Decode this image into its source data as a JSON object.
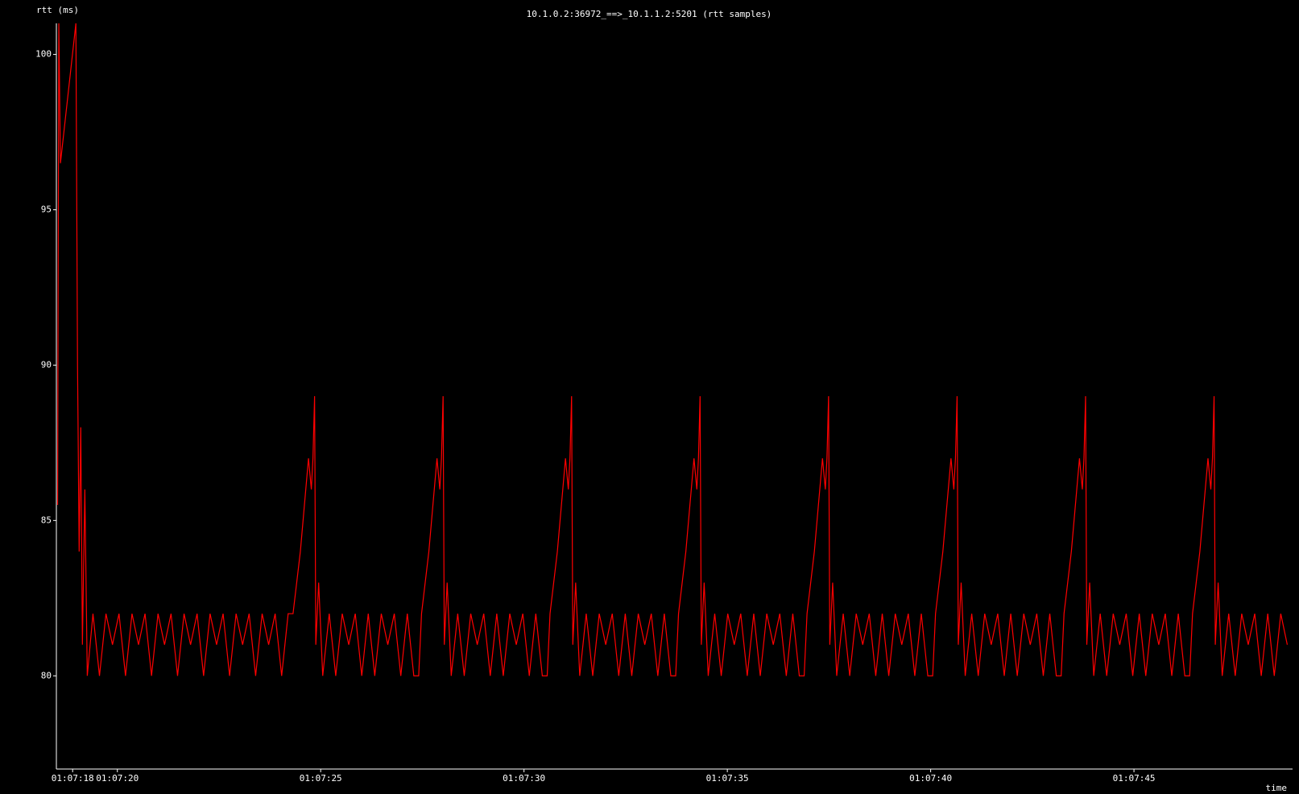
{
  "chart_data": {
    "type": "line",
    "title": "10.1.0.2:36972_==>_10.1.1.2:5201 (rtt samples)",
    "y_label": "rtt (ms)",
    "x_label": "time",
    "xlim": [
      18.5,
      48.9
    ],
    "ylim": [
      77,
      101
    ],
    "xticks": [
      {
        "value": 18.9,
        "label": "01:07:18"
      },
      {
        "value": 20,
        "label": "01:07:20"
      },
      {
        "value": 25,
        "label": "01:07:25"
      },
      {
        "value": 30,
        "label": "01:07:30"
      },
      {
        "value": 35,
        "label": "01:07:35"
      },
      {
        "value": 40,
        "label": "01:07:40"
      },
      {
        "value": 45,
        "label": "01:07:45"
      }
    ],
    "yticks": [
      80,
      85,
      90,
      95,
      100
    ],
    "series": [
      {
        "color": "#ff0000",
        "x": [
          18.53,
          18.56,
          18.6,
          18.98,
          19.02,
          19.06,
          19.1,
          19.14,
          19.2,
          19.26,
          19.4,
          19.56,
          19.72,
          19.88,
          20.04,
          20.2,
          20.36,
          20.52,
          20.68,
          20.84,
          21.0,
          21.16,
          21.32,
          21.48,
          21.64,
          21.8,
          21.96,
          22.12,
          22.28,
          22.44,
          22.6,
          22.76,
          22.92,
          23.08,
          23.24,
          23.4,
          23.56,
          23.72,
          23.88,
          24.04,
          24.2,
          24.32,
          24.5,
          24.7,
          24.77,
          24.81,
          24.85,
          24.88,
          24.95,
          25.05,
          25.21,
          25.37,
          25.53,
          25.69,
          25.85,
          26.01,
          26.17,
          26.33,
          26.49,
          26.65,
          26.81,
          26.97,
          27.13,
          27.29,
          27.41,
          27.48,
          27.66,
          27.86,
          27.93,
          27.97,
          28.01,
          28.04,
          28.11,
          28.21,
          28.37,
          28.53,
          28.69,
          28.85,
          29.01,
          29.17,
          29.33,
          29.49,
          29.65,
          29.81,
          29.97,
          30.13,
          30.29,
          30.45,
          30.57,
          30.64,
          30.82,
          31.02,
          31.09,
          31.13,
          31.17,
          31.2,
          31.27,
          31.37,
          31.53,
          31.69,
          31.85,
          32.01,
          32.17,
          32.33,
          32.49,
          32.65,
          32.81,
          32.97,
          33.13,
          33.29,
          33.45,
          33.61,
          33.73,
          33.8,
          33.98,
          34.18,
          34.25,
          34.29,
          34.33,
          34.36,
          34.43,
          34.53,
          34.69,
          34.85,
          35.01,
          35.17,
          35.33,
          35.49,
          35.65,
          35.81,
          35.97,
          36.13,
          36.29,
          36.45,
          36.61,
          36.77,
          36.89,
          36.96,
          37.14,
          37.34,
          37.41,
          37.45,
          37.49,
          37.52,
          37.59,
          37.69,
          37.85,
          38.01,
          38.17,
          38.33,
          38.49,
          38.65,
          38.81,
          38.97,
          39.13,
          39.29,
          39.45,
          39.61,
          39.77,
          39.93,
          40.05,
          40.12,
          40.3,
          40.5,
          40.57,
          40.61,
          40.65,
          40.68,
          40.75,
          40.85,
          41.01,
          41.17,
          41.33,
          41.49,
          41.65,
          41.81,
          41.97,
          42.13,
          42.29,
          42.45,
          42.61,
          42.77,
          42.93,
          43.09,
          43.21,
          43.28,
          43.46,
          43.66,
          43.73,
          43.77,
          43.81,
          43.84,
          43.91,
          44.01,
          44.17,
          44.33,
          44.49,
          44.65,
          44.81,
          44.97,
          45.13,
          45.29,
          45.45,
          45.61,
          45.77,
          45.93,
          46.09,
          46.25,
          46.37,
          46.44,
          46.62,
          46.82,
          46.89,
          46.93,
          46.97,
          47.0,
          47.07,
          47.17,
          47.33,
          47.49,
          47.65,
          47.81,
          47.97,
          48.13,
          48.29,
          48.45,
          48.61,
          48.77
        ],
        "values": [
          85.5,
          101,
          96.5,
          101,
          90,
          84,
          88,
          81,
          86,
          80,
          82,
          80,
          82,
          81,
          82,
          80,
          82,
          81,
          82,
          80,
          82,
          81,
          82,
          80,
          82,
          81,
          82,
          80,
          82,
          81,
          82,
          80,
          82,
          81,
          82,
          80,
          82,
          81,
          82,
          80,
          82,
          82,
          84,
          87,
          86,
          87,
          89,
          81,
          83,
          80,
          82,
          80,
          82,
          81,
          82,
          80,
          82,
          80,
          82,
          81,
          82,
          80,
          82,
          80,
          80,
          82,
          84,
          87,
          86,
          87,
          89,
          81,
          83,
          80,
          82,
          80,
          82,
          81,
          82,
          80,
          82,
          80,
          82,
          81,
          82,
          80,
          82,
          80,
          80,
          82,
          84,
          87,
          86,
          87,
          89,
          81,
          83,
          80,
          82,
          80,
          82,
          81,
          82,
          80,
          82,
          80,
          82,
          81,
          82,
          80,
          82,
          80,
          80,
          82,
          84,
          87,
          86,
          87,
          89,
          81,
          83,
          80,
          82,
          80,
          82,
          81,
          82,
          80,
          82,
          80,
          82,
          81,
          82,
          80,
          82,
          80,
          80,
          82,
          84,
          87,
          86,
          87,
          89,
          81,
          83,
          80,
          82,
          80,
          82,
          81,
          82,
          80,
          82,
          80,
          82,
          81,
          82,
          80,
          82,
          80,
          80,
          82,
          84,
          87,
          86,
          87,
          89,
          81,
          83,
          80,
          82,
          80,
          82,
          81,
          82,
          80,
          82,
          80,
          82,
          81,
          82,
          80,
          82,
          80,
          80,
          82,
          84,
          87,
          86,
          87,
          89,
          81,
          83,
          80,
          82,
          80,
          82,
          81,
          82,
          80,
          82,
          80,
          82,
          81,
          82,
          80,
          82,
          80,
          80,
          82,
          84,
          87,
          86,
          87,
          89,
          81,
          83,
          80,
          82,
          80,
          82,
          81,
          82,
          80,
          82,
          80,
          82,
          81
        ]
      }
    ]
  }
}
